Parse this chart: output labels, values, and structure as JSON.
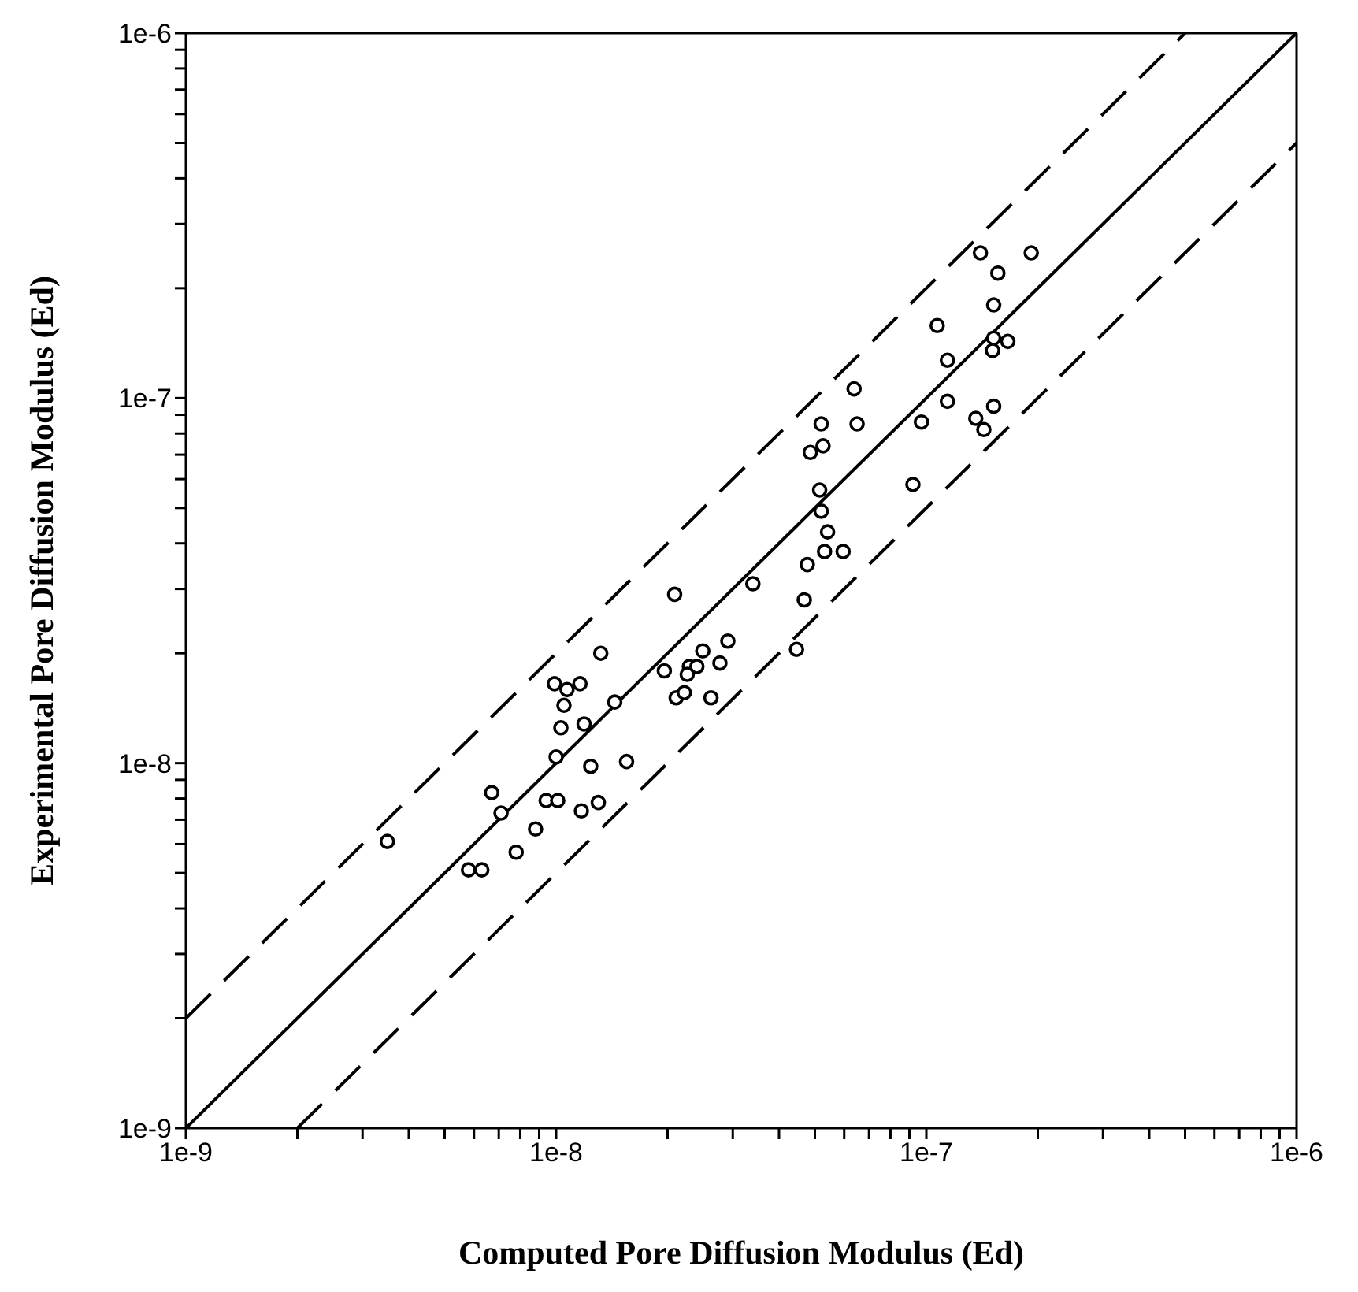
{
  "chart_data": {
    "type": "scatter",
    "xlabel": "Computed Pore Diffusion Modulus (Ed)",
    "ylabel": "Experimental Pore Diffusion Modulus (Ed)",
    "log": "xy",
    "xlim": [
      1e-09,
      1e-06
    ],
    "ylim": [
      1e-09,
      1e-06
    ],
    "xticks": [
      {
        "value": 1e-09,
        "label": "1e-9"
      },
      {
        "value": 2e-09,
        "label": null
      },
      {
        "value": 3e-09,
        "label": null
      },
      {
        "value": 4e-09,
        "label": null
      },
      {
        "value": 5e-09,
        "label": null
      },
      {
        "value": 6e-09,
        "label": null
      },
      {
        "value": 7e-09,
        "label": null
      },
      {
        "value": 8e-09,
        "label": null
      },
      {
        "value": 9e-09,
        "label": null
      },
      {
        "value": 1e-08,
        "label": "1e-8"
      },
      {
        "value": 2e-08,
        "label": null
      },
      {
        "value": 3e-08,
        "label": null
      },
      {
        "value": 4e-08,
        "label": null
      },
      {
        "value": 5e-08,
        "label": null
      },
      {
        "value": 6e-08,
        "label": null
      },
      {
        "value": 7e-08,
        "label": null
      },
      {
        "value": 8e-08,
        "label": null
      },
      {
        "value": 9e-08,
        "label": null
      },
      {
        "value": 1e-07,
        "label": "1e-7"
      },
      {
        "value": 2e-07,
        "label": null
      },
      {
        "value": 3e-07,
        "label": null
      },
      {
        "value": 4e-07,
        "label": null
      },
      {
        "value": 5e-07,
        "label": null
      },
      {
        "value": 6e-07,
        "label": null
      },
      {
        "value": 7e-07,
        "label": null
      },
      {
        "value": 8e-07,
        "label": null
      },
      {
        "value": 9e-07,
        "label": null
      },
      {
        "value": 1e-06,
        "label": "1e-6"
      }
    ],
    "yticks": [
      {
        "value": 1e-09,
        "label": "1e-9"
      },
      {
        "value": 2e-09,
        "label": null
      },
      {
        "value": 3e-09,
        "label": null
      },
      {
        "value": 4e-09,
        "label": null
      },
      {
        "value": 5e-09,
        "label": null
      },
      {
        "value": 6e-09,
        "label": null
      },
      {
        "value": 7e-09,
        "label": null
      },
      {
        "value": 8e-09,
        "label": null
      },
      {
        "value": 9e-09,
        "label": null
      },
      {
        "value": 1e-08,
        "label": "1e-8"
      },
      {
        "value": 2e-08,
        "label": null
      },
      {
        "value": 3e-08,
        "label": null
      },
      {
        "value": 4e-08,
        "label": null
      },
      {
        "value": 5e-08,
        "label": null
      },
      {
        "value": 6e-08,
        "label": null
      },
      {
        "value": 7e-08,
        "label": null
      },
      {
        "value": 8e-08,
        "label": null
      },
      {
        "value": 9e-08,
        "label": null
      },
      {
        "value": 1e-07,
        "label": "1e-7"
      },
      {
        "value": 2e-07,
        "label": null
      },
      {
        "value": 3e-07,
        "label": null
      },
      {
        "value": 4e-07,
        "label": null
      },
      {
        "value": 5e-07,
        "label": null
      },
      {
        "value": 6e-07,
        "label": null
      },
      {
        "value": 7e-07,
        "label": null
      },
      {
        "value": 8e-07,
        "label": null
      },
      {
        "value": 9e-07,
        "label": null
      },
      {
        "value": 1e-06,
        "label": "1e-6"
      }
    ],
    "series": [
      {
        "type": "line",
        "color": "#000000",
        "line_style": "dashed",
        "marker": "none",
        "x": [
          1e-09,
          5e-07
        ],
        "values": [
          2e-09,
          1e-06
        ]
      },
      {
        "type": "line",
        "color": "#000000",
        "line_style": "solid",
        "marker": "none",
        "x": [
          1e-09,
          1e-06
        ],
        "values": [
          1e-09,
          1e-06
        ]
      },
      {
        "type": "line",
        "color": "#000000",
        "line_style": "dashed",
        "marker": "none",
        "x": [
          2e-09,
          1e-06
        ],
        "values": [
          1e-09,
          5e-07
        ]
      },
      {
        "color": "#000000",
        "marker": "circle",
        "x": [
          9.9e-09,
          1.07e-08,
          1.16e-08,
          1.05e-08,
          1.03e-08,
          1.19e-08,
          1e-08,
          1.24e-08,
          1.55e-08,
          6.7e-09,
          7.1e-09,
          9.4e-09,
          1.01e-08,
          1.17e-08,
          1.3e-08,
          8.8e-09,
          7.8e-09,
          5.8e-09,
          6.3e-09,
          1.32e-08,
          1.44e-08,
          1.96e-08,
          2.29e-08,
          2.4e-08,
          2.26e-08,
          2.49e-08,
          2.91e-08,
          2.77e-08,
          2.11e-08,
          2.22e-08,
          2.62e-08,
          4.46e-08,
          6.38e-08,
          5.2e-08,
          6.5e-08,
          5.26e-08,
          4.86e-08,
          5.15e-08,
          5.2e-08,
          5.41e-08,
          5.31e-08,
          5.96e-08,
          4.77e-08,
          4.68e-08,
          9.2e-08,
          1.14e-07,
          9.7e-08,
          1.36e-07,
          1.43e-07,
          2.09e-08,
          3.4e-08,
          1.4e-07,
          1.92e-07,
          1.56e-07,
          1.52e-07,
          1.07e-07,
          1.52e-07,
          1.66e-07,
          1.51e-07,
          1.14e-07,
          1.52e-07,
          3.5e-09
        ],
        "values": [
          1.65e-08,
          1.59e-08,
          1.65e-08,
          1.44e-08,
          1.25e-08,
          1.28e-08,
          1.04e-08,
          9.8e-09,
          1.01e-08,
          8.3e-09,
          7.3e-09,
          7.9e-09,
          7.9e-09,
          7.4e-09,
          7.8e-09,
          6.6e-09,
          5.7e-09,
          5.1e-09,
          5.1e-09,
          2e-08,
          1.47e-08,
          1.79e-08,
          1.84e-08,
          1.84e-08,
          1.75e-08,
          2.03e-08,
          2.16e-08,
          1.88e-08,
          1.51e-08,
          1.56e-08,
          1.51e-08,
          2.05e-08,
          1.06e-07,
          8.5e-08,
          8.5e-08,
          7.4e-08,
          7.1e-08,
          5.6e-08,
          4.9e-08,
          4.3e-08,
          3.8e-08,
          3.8e-08,
          3.5e-08,
          2.8e-08,
          5.8e-08,
          9.8e-08,
          8.6e-08,
          8.8e-08,
          8.2e-08,
          2.9e-08,
          3.1e-08,
          2.5e-07,
          2.5e-07,
          2.2e-07,
          1.8e-07,
          1.58e-07,
          1.46e-07,
          1.43e-07,
          1.35e-07,
          1.27e-07,
          9.5e-08,
          6.1e-09
        ]
      }
    ]
  }
}
